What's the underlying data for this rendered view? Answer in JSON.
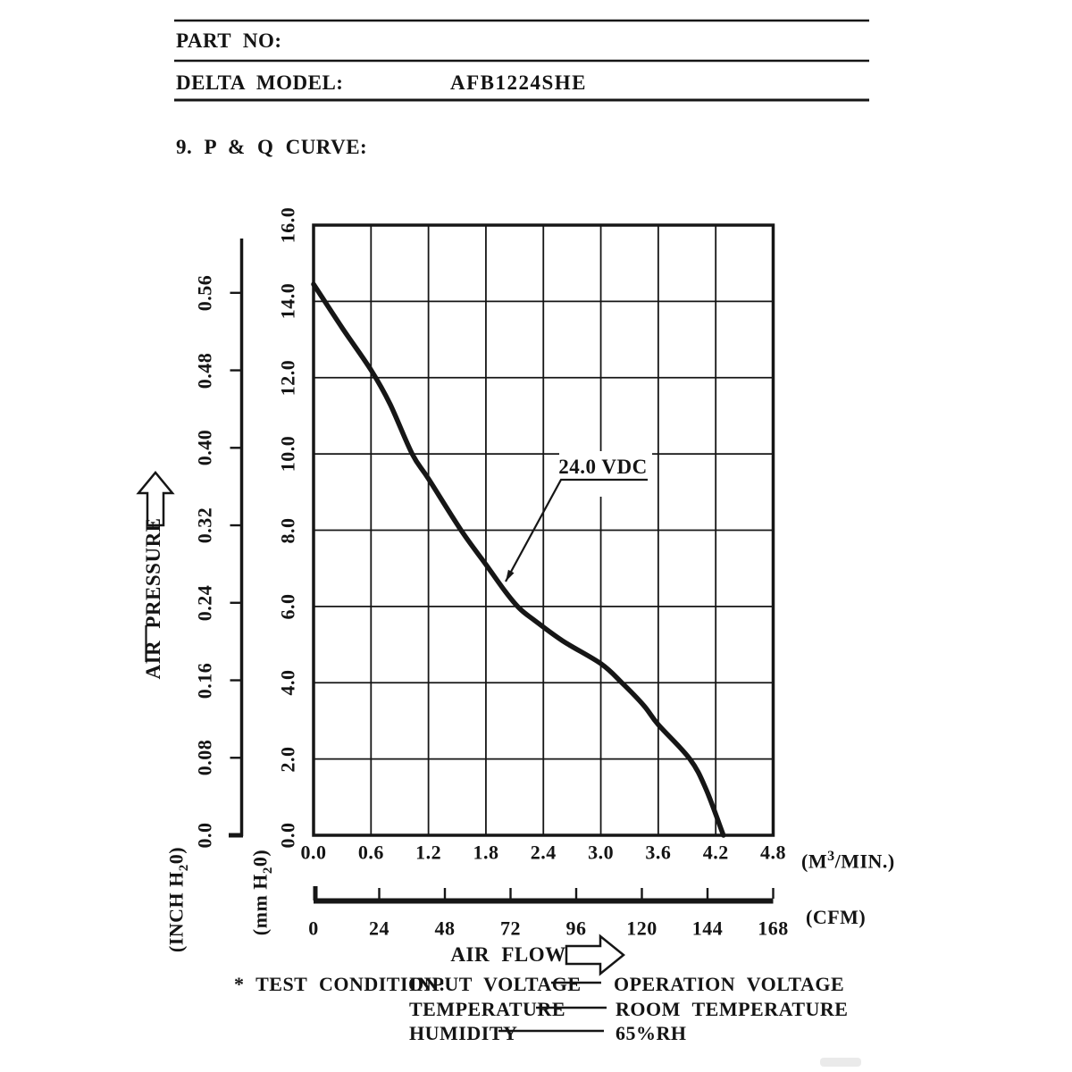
{
  "header": {
    "part_no_label": "PART NO:",
    "model_label": "DELTA MODEL:",
    "model_value": "AFB1224SHE",
    "section_title": "9. P & Q CURVE:"
  },
  "chart_data": {
    "type": "line",
    "title": "P & Q CURVE",
    "grid": true,
    "annotation": "24.0 VDC",
    "series": [
      {
        "name": "24.0 VDC",
        "x_unit": "M3/MIN.",
        "y_unit": "mm H20",
        "points": [
          [
            0.0,
            14.45
          ],
          [
            0.3,
            13.3
          ],
          [
            0.6,
            12.2
          ],
          [
            0.8,
            11.3
          ],
          [
            1.03,
            10.0
          ],
          [
            1.2,
            9.35
          ],
          [
            1.54,
            8.0
          ],
          [
            1.8,
            7.1
          ],
          [
            2.0,
            6.4
          ],
          [
            2.15,
            5.95
          ],
          [
            2.3,
            5.65
          ],
          [
            2.6,
            5.1
          ],
          [
            3.0,
            4.5
          ],
          [
            3.22,
            4.0
          ],
          [
            3.45,
            3.4
          ],
          [
            3.6,
            2.9
          ],
          [
            3.93,
            2.0
          ],
          [
            4.1,
            1.2
          ],
          [
            4.28,
            0.0
          ]
        ]
      }
    ],
    "x_axis": {
      "label": "AIR FLOW",
      "m3min": {
        "ticks": [
          "0.0",
          "0.6",
          "1.2",
          "1.8",
          "2.4",
          "3.0",
          "3.6",
          "4.2",
          "4.8"
        ],
        "range": [
          0,
          4.8
        ]
      },
      "cfm": {
        "ticks": [
          "0",
          "24",
          "48",
          "72",
          "96",
          "120",
          "144",
          "168"
        ],
        "range": [
          0,
          168
        ]
      }
    },
    "y_axis": {
      "label": "AIR PRESSURE",
      "mm": {
        "ticks": [
          "0.0",
          "2.0",
          "4.0",
          "6.0",
          "8.0",
          "10.0",
          "12.0",
          "14.0",
          "16.0"
        ],
        "range": [
          0,
          16
        ]
      },
      "inch": {
        "ticks": [
          "0.0",
          "0.08",
          "0.16",
          "0.24",
          "0.32",
          "0.40",
          "0.48",
          "0.56"
        ],
        "range": [
          0,
          0.56
        ]
      }
    }
  },
  "axis_captions": {
    "m3min_prefix": "(M",
    "m3min_sup": "3",
    "m3min_suffix": "/MIN.)",
    "cfm": "(CFM)",
    "inch_prefix": "(INCH H",
    "inch_sub": "2",
    "inch_suffix": "0)",
    "mm_prefix": "(mm H",
    "mm_sub": "2",
    "mm_suffix": "0)"
  },
  "test_condition": {
    "prefix": "* TEST CONDITION:",
    "rows": [
      {
        "left": "INPUT VOLTAGE",
        "right": "OPERATION VOLTAGE"
      },
      {
        "left": "TEMPERATURE",
        "right": "ROOM TEMPERATURE"
      },
      {
        "left": "HUMIDITY",
        "right": "65%RH"
      }
    ]
  },
  "colors": {
    "ink": "#161616",
    "background": "#ffffff"
  }
}
